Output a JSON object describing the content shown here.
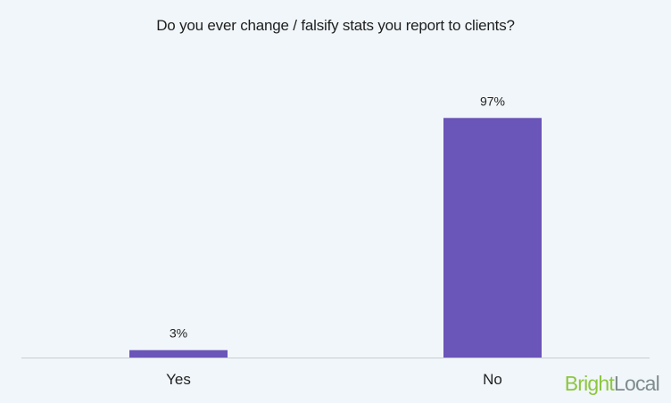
{
  "chart_data": {
    "type": "bar",
    "title": "Do you ever change / falsify stats you report to clients?",
    "categories": [
      "Yes",
      "No"
    ],
    "values": [
      3,
      97
    ],
    "value_labels": [
      "3%",
      "97%"
    ],
    "ylim": [
      0,
      100
    ],
    "xlabel": "",
    "ylabel": "",
    "grid": false,
    "legend": "none",
    "bar_color": "#6a55b8",
    "axis_color": "#c8ced4"
  },
  "brand": {
    "part1": "Bright",
    "part2": "Local",
    "color1": "#8cc63f",
    "color2": "#7f8c8d"
  }
}
